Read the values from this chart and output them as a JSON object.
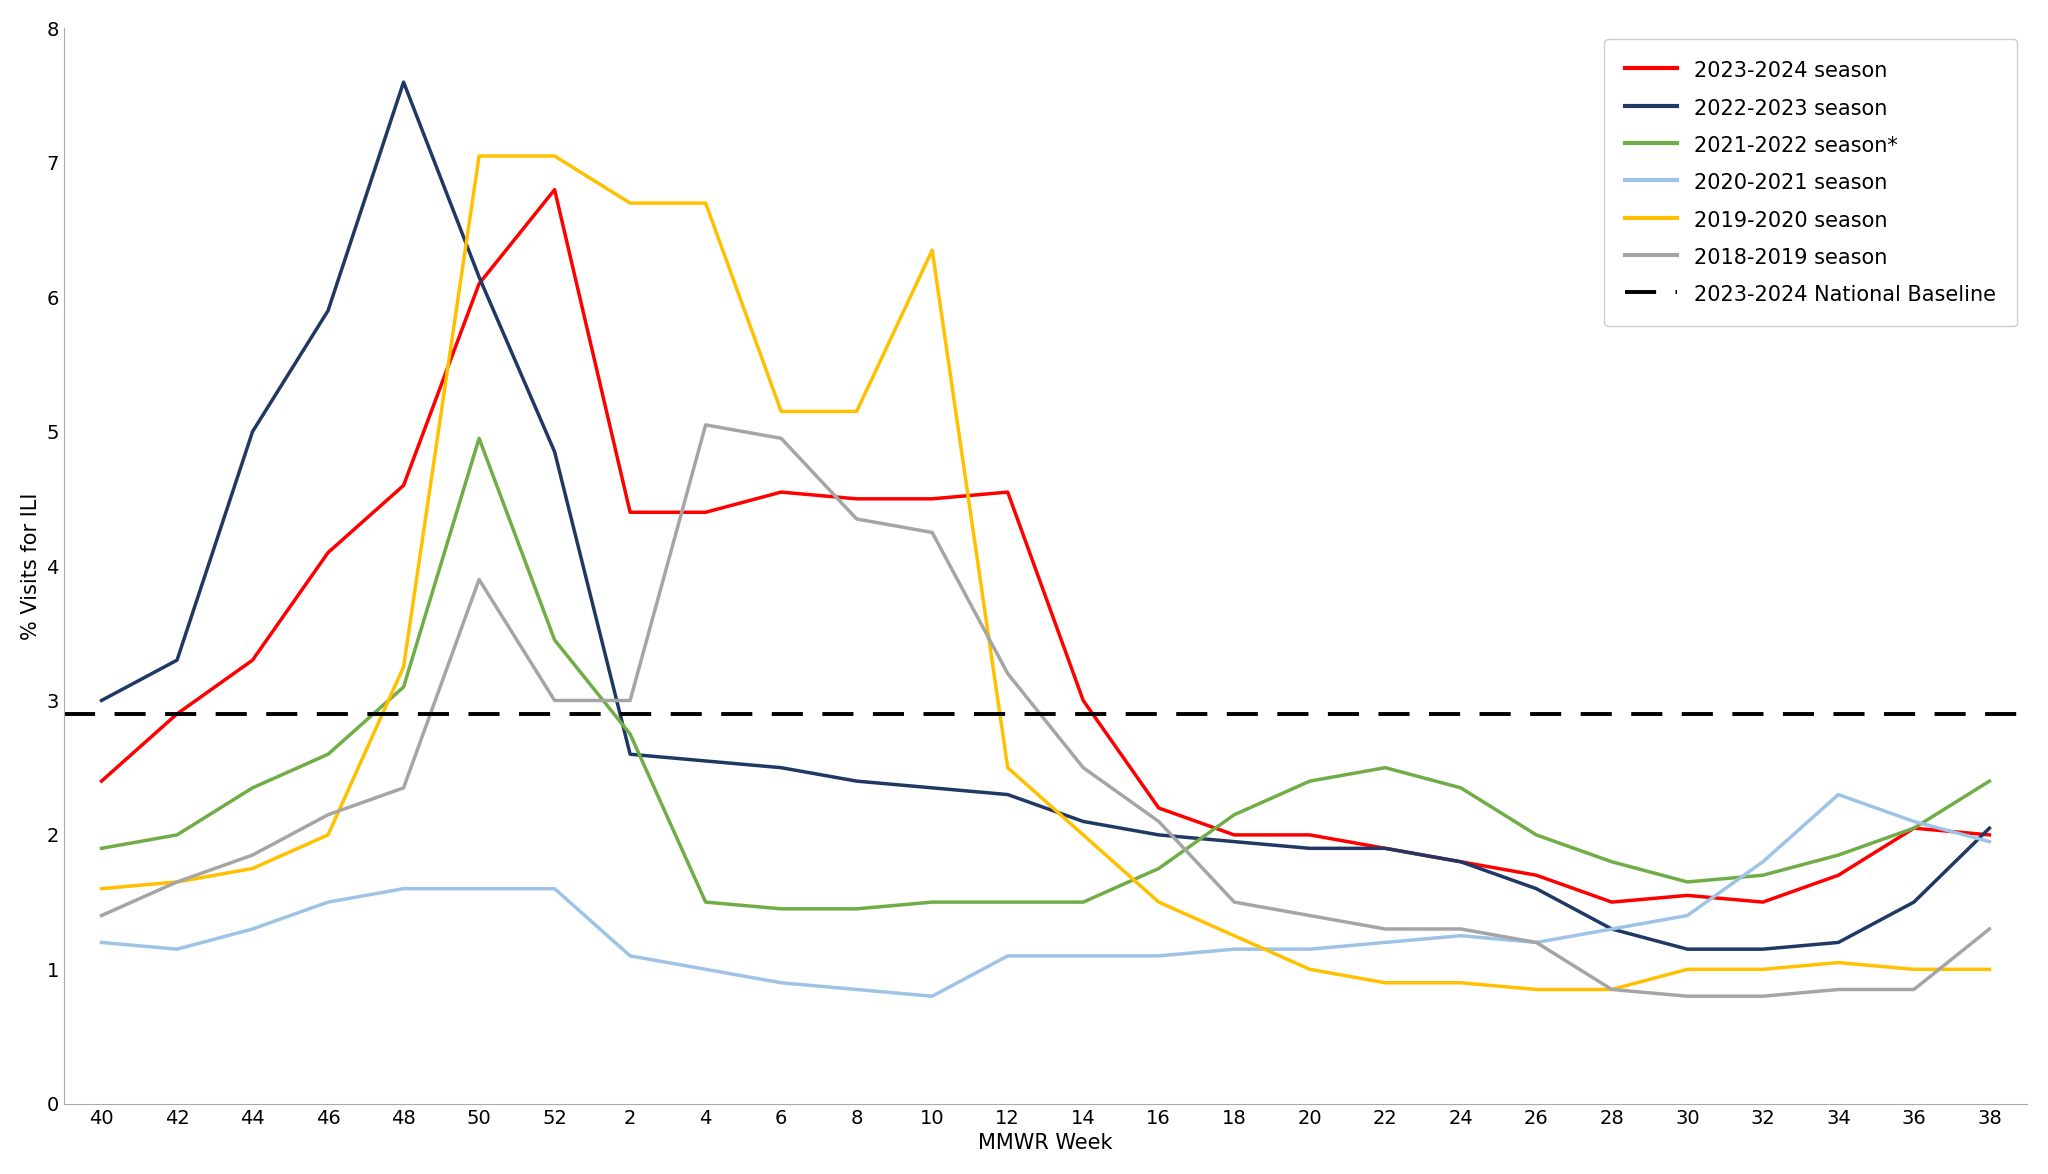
{
  "x_ticks": [
    40,
    42,
    44,
    46,
    48,
    50,
    52,
    2,
    4,
    6,
    8,
    10,
    12,
    14,
    16,
    18,
    20,
    22,
    24,
    26,
    28,
    30,
    32,
    34,
    36,
    38
  ],
  "x_positions": [
    0,
    1,
    2,
    3,
    4,
    5,
    6,
    7,
    8,
    9,
    10,
    11,
    12,
    13,
    14,
    15,
    16,
    17,
    18,
    19,
    20,
    21,
    22,
    23,
    24,
    25
  ],
  "baseline": 2.9,
  "seasons": {
    "2023-2024": {
      "color": "#FF0000",
      "linewidth": 2.5,
      "label": "2023-2024 season",
      "values": [
        2.4,
        2.9,
        3.3,
        4.1,
        4.6,
        6.1,
        6.8,
        4.4,
        4.4,
        4.55,
        4.5,
        4.5,
        4.55,
        3.0,
        2.2,
        2.0,
        2.0,
        1.9,
        1.8,
        1.7,
        1.5,
        1.55,
        1.5,
        1.7,
        2.05,
        2.0
      ]
    },
    "2022-2023": {
      "color": "#1F3864",
      "linewidth": 2.5,
      "label": "2022-2023 season",
      "values": [
        3.0,
        3.3,
        5.0,
        5.9,
        7.6,
        6.15,
        4.85,
        2.6,
        2.55,
        2.5,
        2.4,
        2.35,
        2.3,
        2.1,
        2.0,
        1.95,
        1.9,
        1.9,
        1.8,
        1.6,
        1.3,
        1.15,
        1.15,
        1.2,
        1.5,
        2.05
      ]
    },
    "2021-2022": {
      "color": "#70AD47",
      "linewidth": 2.5,
      "label": "2021-2022 season*",
      "values": [
        1.9,
        2.0,
        2.35,
        2.6,
        3.1,
        4.95,
        3.45,
        2.75,
        1.5,
        1.45,
        1.45,
        1.5,
        1.5,
        1.5,
        1.75,
        2.15,
        2.4,
        2.5,
        2.35,
        2.0,
        1.8,
        1.65,
        1.7,
        1.85,
        2.05,
        2.4
      ]
    },
    "2020-2021": {
      "color": "#9DC3E6",
      "linewidth": 2.5,
      "label": "2020-2021 season",
      "values": [
        1.2,
        1.15,
        1.3,
        1.5,
        1.6,
        1.6,
        1.6,
        1.1,
        1.0,
        0.9,
        0.85,
        0.8,
        1.1,
        1.1,
        1.1,
        1.15,
        1.15,
        1.2,
        1.25,
        1.2,
        1.3,
        1.4,
        1.8,
        2.3,
        2.1,
        1.95
      ]
    },
    "2019-2020": {
      "color": "#FFC000",
      "linewidth": 2.5,
      "label": "2019-2020 season",
      "values": [
        1.6,
        1.65,
        1.75,
        2.0,
        3.25,
        7.05,
        7.05,
        6.7,
        6.7,
        5.15,
        5.15,
        6.35,
        2.5,
        2.0,
        1.5,
        1.25,
        1.0,
        0.9,
        0.9,
        0.85,
        0.85,
        1.0,
        1.0,
        1.05,
        1.0,
        1.0
      ]
    },
    "2018-2019": {
      "color": "#A5A5A5",
      "linewidth": 2.5,
      "label": "2018-2019 season",
      "values": [
        1.4,
        1.65,
        1.85,
        2.15,
        2.35,
        3.9,
        3.0,
        3.0,
        5.05,
        4.95,
        4.35,
        4.25,
        3.2,
        2.5,
        2.1,
        1.5,
        1.4,
        1.3,
        1.3,
        1.2,
        0.85,
        0.8,
        0.8,
        0.85,
        0.85,
        1.3
      ]
    }
  },
  "ylim": [
    0,
    8
  ],
  "yticks": [
    0,
    1,
    2,
    3,
    4,
    5,
    6,
    7,
    8
  ],
  "ylabel": "% Visits for ILI",
  "xlabel": "MMWR Week",
  "background_color": "#FFFFFF",
  "legend_fontsize": 15,
  "axis_label_fontsize": 15,
  "tick_fontsize": 14
}
